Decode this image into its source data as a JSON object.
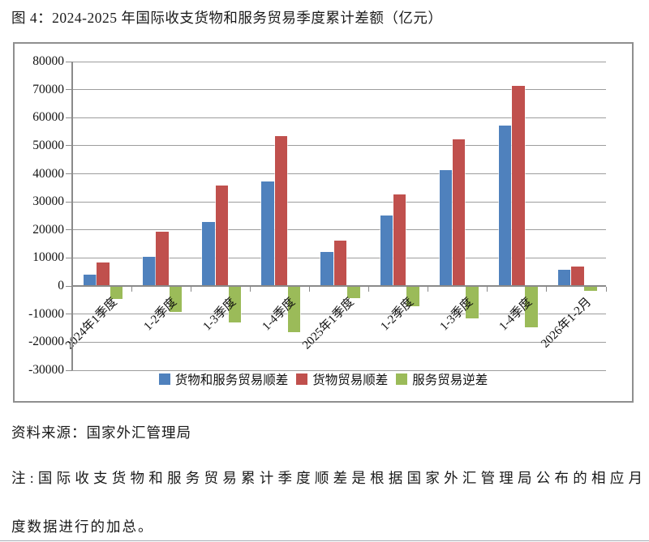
{
  "page": {
    "title": "图 4：2024-2025 年国际收支货物和服务贸易季度累计差额（亿元）",
    "source": "资料来源：国家外汇管理局",
    "note_line1": "注:国际收支货物和服务贸易累计季度顺差是根据国家外汇管理局公布的相应月",
    "note_line2": "度数据进行的加总。"
  },
  "chart_data": {
    "type": "bar",
    "title": "",
    "xlabel": "",
    "ylabel": "",
    "categories": [
      "2024年1季度",
      "1-2季度",
      "1-3季度",
      "1-4季度",
      "2025年1季度",
      "1-2季度",
      "1-3季度",
      "1-4季度",
      "2026年1-2月"
    ],
    "series": [
      {
        "name": "货物和服务贸易顺差",
        "color": "#4F81BD",
        "values": [
          4200,
          10400,
          22800,
          37300,
          12200,
          25100,
          41200,
          57300,
          5700
        ]
      },
      {
        "name": "货物贸易顺差",
        "color": "#C0504D",
        "values": [
          8300,
          19400,
          35700,
          53500,
          16200,
          32700,
          52300,
          71400,
          7000
        ]
      },
      {
        "name": "服务贸易逆差",
        "color": "#9BBB59",
        "values": [
          -4300,
          -9000,
          -12700,
          -16100,
          -3900,
          -7000,
          -11300,
          -14400,
          -1300
        ]
      }
    ],
    "ylim": [
      -30000,
      80000
    ],
    "ytick_step": 10000,
    "grid": true,
    "legend_position": "bottom",
    "gridline_color": "#9d9d9d",
    "axis_color": "#8a8a8a"
  }
}
